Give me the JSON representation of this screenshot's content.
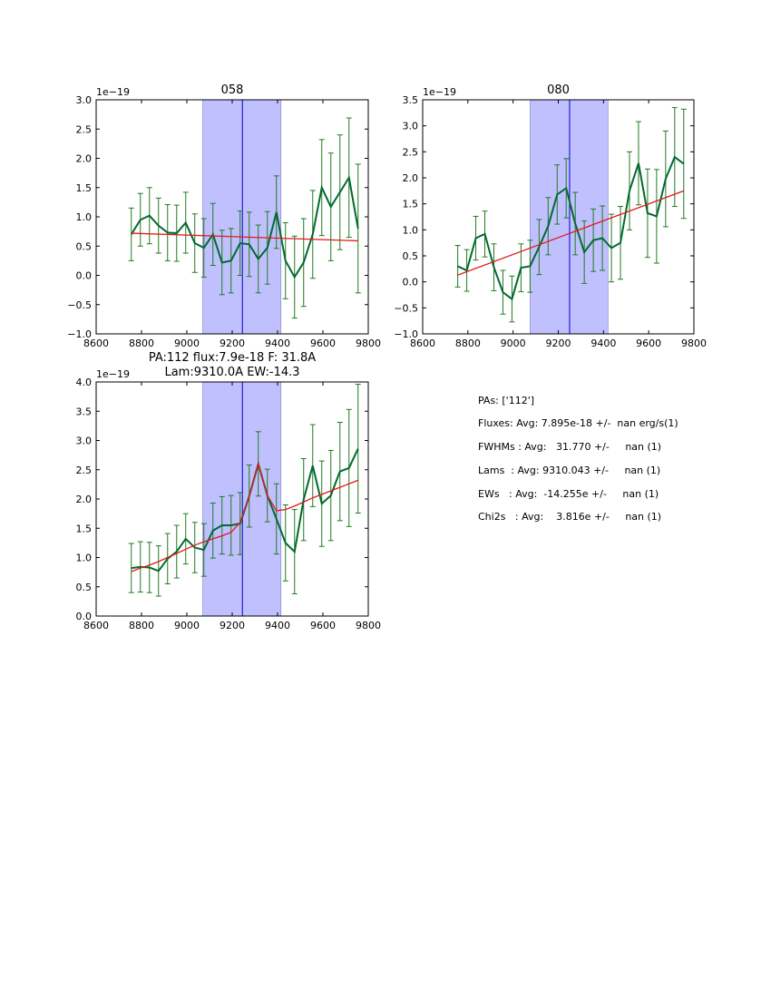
{
  "chart_data": [
    {
      "type": "line",
      "title": "058",
      "xlim": [
        8600,
        9800
      ],
      "ylim": [
        -1.0,
        3.0
      ],
      "xticks": [
        "8600",
        "8800",
        "9000",
        "9200",
        "9400",
        "9600",
        "9800"
      ],
      "yticks": [
        "−1.0",
        "−0.5",
        "0.0",
        "0.5",
        "1.0",
        "1.5",
        "2.0",
        "2.5",
        "3.0"
      ],
      "offset_label": "1e−19",
      "band": [
        9070,
        9415
      ],
      "center_line": 9245,
      "x": [
        8755,
        8795,
        8835,
        8875,
        8915,
        8955,
        8995,
        9035,
        9075,
        9115,
        9155,
        9195,
        9235,
        9275,
        9315,
        9355,
        9395,
        9435,
        9475,
        9515,
        9555,
        9595,
        9635,
        9675,
        9715,
        9755
      ],
      "y": [
        0.7,
        0.95,
        1.02,
        0.85,
        0.73,
        0.72,
        0.9,
        0.55,
        0.47,
        0.7,
        0.22,
        0.25,
        0.55,
        0.53,
        0.28,
        0.47,
        1.08,
        0.25,
        -0.03,
        0.22,
        0.7,
        1.5,
        1.17,
        1.42,
        1.67,
        0.8
      ],
      "yerr": [
        0.45,
        0.45,
        0.48,
        0.47,
        0.48,
        0.48,
        0.52,
        0.5,
        0.5,
        0.53,
        0.55,
        0.55,
        0.55,
        0.55,
        0.58,
        0.62,
        0.62,
        0.65,
        0.7,
        0.75,
        0.75,
        0.82,
        0.92,
        0.98,
        1.02,
        1.1
      ],
      "fit": {
        "x": [
          8755,
          9755
        ],
        "y": [
          0.72,
          0.59
        ]
      }
    },
    {
      "type": "line",
      "title": "080",
      "xlim": [
        8600,
        9800
      ],
      "ylim": [
        -1.0,
        3.5
      ],
      "xticks": [
        "8600",
        "8800",
        "9000",
        "9200",
        "9400",
        "9600",
        "9800"
      ],
      "yticks": [
        "−1.0",
        "−0.5",
        "0.0",
        "0.5",
        "1.0",
        "1.5",
        "2.0",
        "2.5",
        "3.0",
        "3.5"
      ],
      "offset_label": "1e−19",
      "band": [
        9075,
        9420
      ],
      "center_line": 9250,
      "x": [
        8755,
        8795,
        8835,
        8875,
        8915,
        8955,
        8995,
        9035,
        9075,
        9115,
        9155,
        9195,
        9235,
        9275,
        9315,
        9355,
        9395,
        9435,
        9475,
        9515,
        9555,
        9595,
        9635,
        9675,
        9715,
        9755
      ],
      "y": [
        0.3,
        0.22,
        0.84,
        0.92,
        0.28,
        -0.2,
        -0.33,
        0.27,
        0.3,
        0.67,
        1.07,
        1.68,
        1.8,
        1.12,
        0.57,
        0.8,
        0.84,
        0.65,
        0.75,
        1.75,
        2.28,
        1.32,
        1.26,
        1.98,
        2.4,
        2.27
      ],
      "yerr": [
        0.4,
        0.4,
        0.42,
        0.44,
        0.45,
        0.42,
        0.44,
        0.46,
        0.5,
        0.53,
        0.55,
        0.57,
        0.57,
        0.6,
        0.6,
        0.6,
        0.62,
        0.65,
        0.7,
        0.75,
        0.8,
        0.85,
        0.9,
        0.92,
        0.95,
        1.05
      ],
      "fit": {
        "x": [
          8755,
          9755
        ],
        "y": [
          0.13,
          1.75
        ]
      }
    },
    {
      "type": "line",
      "title": "PA:112 flux:7.9e-18 F: 31.8A\nLam:9310.0A EW:-14.3",
      "xlim": [
        8600,
        9800
      ],
      "ylim": [
        0.0,
        4.0
      ],
      "xticks": [
        "8600",
        "8800",
        "9000",
        "9200",
        "9400",
        "9600",
        "9800"
      ],
      "yticks": [
        "0.0",
        "0.5",
        "1.0",
        "1.5",
        "2.0",
        "2.5",
        "3.0",
        "3.5",
        "4.0"
      ],
      "offset_label": "1e−19",
      "band": [
        9070,
        9415
      ],
      "center_line": 9245,
      "x": [
        8755,
        8795,
        8835,
        8875,
        8915,
        8955,
        8995,
        9035,
        9075,
        9115,
        9155,
        9195,
        9235,
        9275,
        9315,
        9355,
        9395,
        9435,
        9475,
        9515,
        9555,
        9595,
        9635,
        9675,
        9715,
        9755
      ],
      "y": [
        0.82,
        0.84,
        0.83,
        0.77,
        0.98,
        1.1,
        1.32,
        1.17,
        1.13,
        1.46,
        1.55,
        1.55,
        1.58,
        2.05,
        2.6,
        2.06,
        1.66,
        1.25,
        1.1,
        1.99,
        2.57,
        1.92,
        2.06,
        2.47,
        2.53,
        2.86
      ],
      "yerr": [
        0.42,
        0.43,
        0.43,
        0.43,
        0.43,
        0.45,
        0.43,
        0.43,
        0.45,
        0.47,
        0.49,
        0.51,
        0.53,
        0.53,
        0.55,
        0.45,
        0.6,
        0.65,
        0.72,
        0.7,
        0.7,
        0.73,
        0.77,
        0.84,
        1.0,
        1.1
      ],
      "fit": {
        "x": [
          8755,
          8795,
          8835,
          8875,
          8915,
          8955,
          8995,
          9035,
          9075,
          9115,
          9155,
          9195,
          9235,
          9275,
          9315,
          9355,
          9395,
          9435,
          9475,
          9515,
          9555,
          9595,
          9635,
          9675,
          9715,
          9755
        ],
        "y": [
          0.76,
          0.82,
          0.87,
          0.93,
          1.0,
          1.07,
          1.14,
          1.21,
          1.27,
          1.32,
          1.37,
          1.43,
          1.6,
          2.05,
          2.6,
          2.06,
          1.8,
          1.82,
          1.88,
          1.95,
          2.02,
          2.08,
          2.14,
          2.2,
          2.26,
          2.32
        ]
      }
    }
  ],
  "info": {
    "pas": "PAs: ['112']",
    "fluxes": "Fluxes: Avg: 7.895e-18 +/-  nan erg/s(1)",
    "fwhms": "FWHMs : Avg:   31.770 +/-     nan (1)",
    "lams": "Lams  : Avg: 9310.043 +/-     nan (1)",
    "ews": "EWs   : Avg:  -14.255e +/-     nan (1)",
    "chi2s": "Chi2s   : Avg:    3.816e +/-     nan (1)"
  },
  "colors": {
    "data": "#006a2e",
    "errorbar": "#207a20",
    "fit": "#e41a1c",
    "band": "#c0c0ff",
    "center": "#0000cc"
  }
}
